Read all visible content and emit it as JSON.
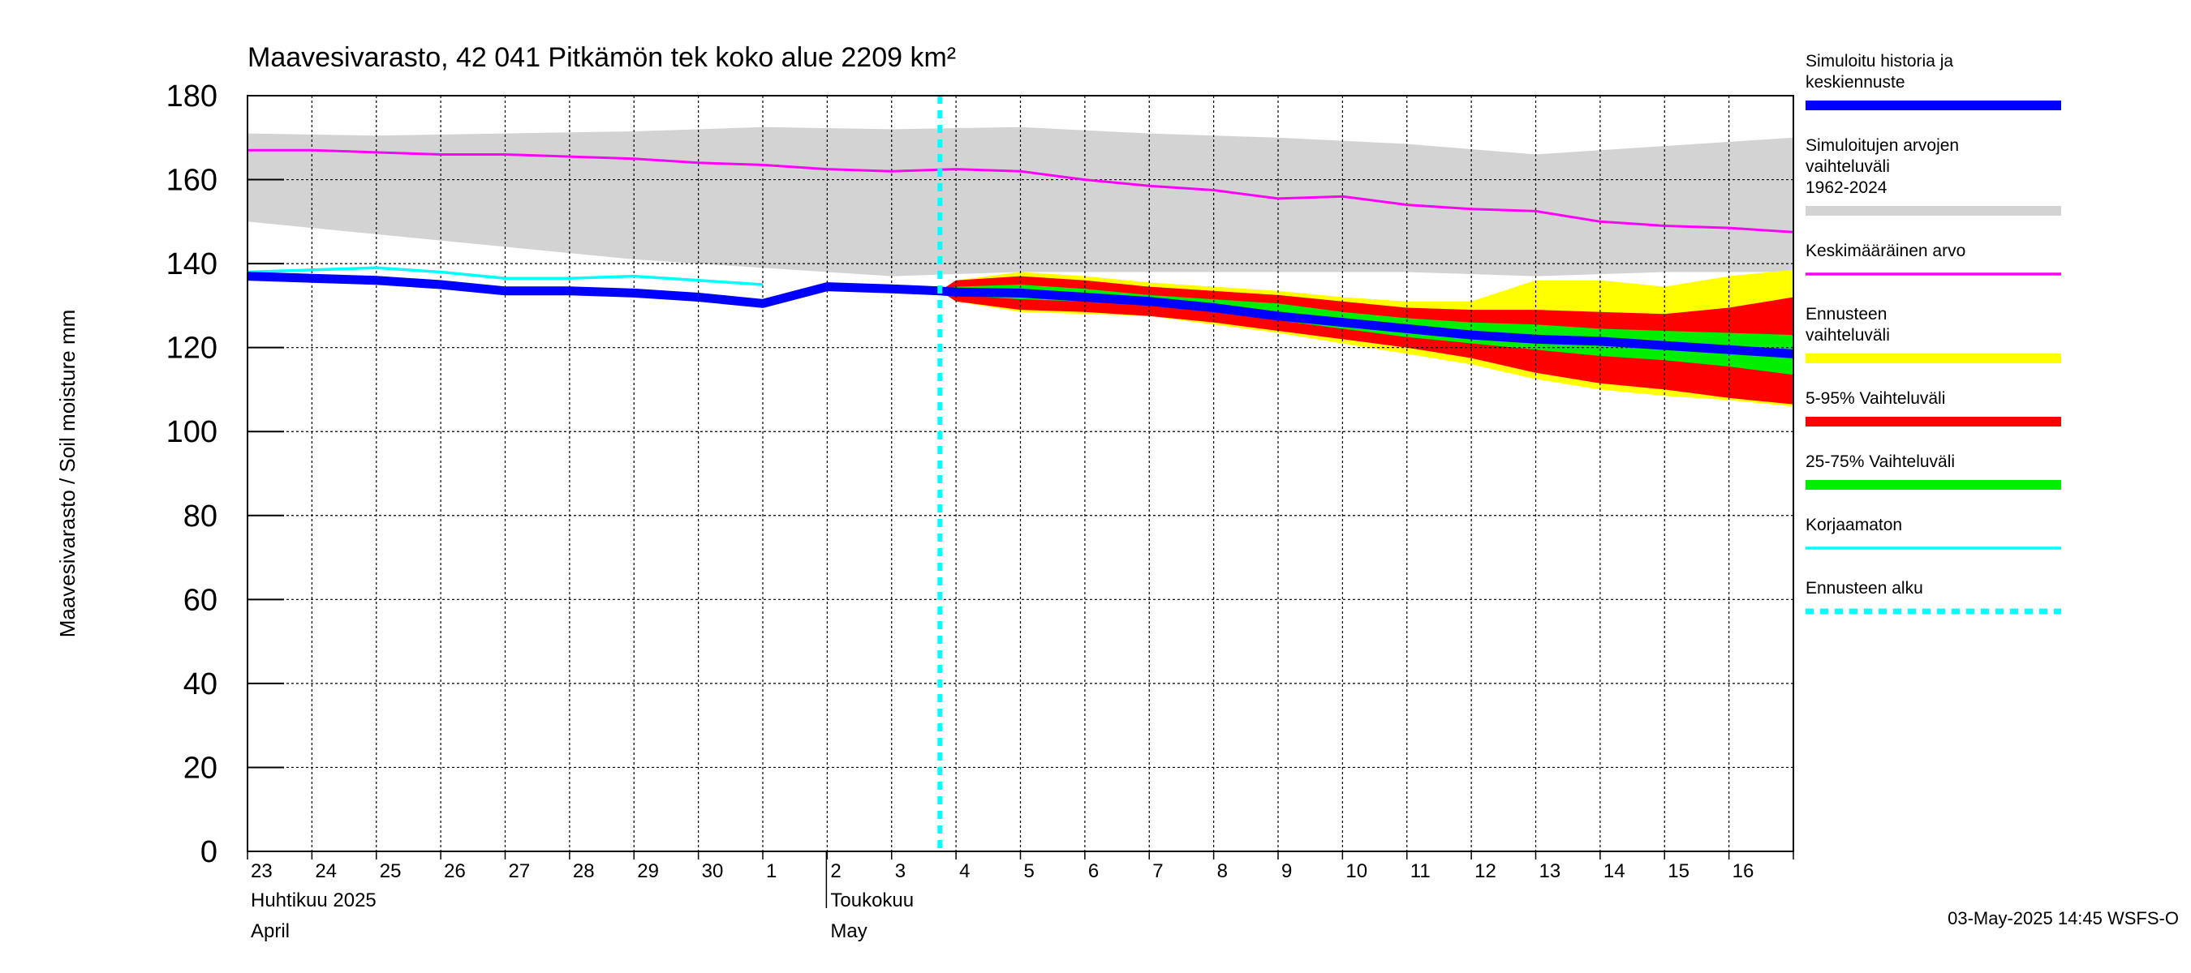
{
  "chart_data": {
    "type": "area",
    "title": "Maavesivarasto, 42 041 Pitkämön tek koko alue 2209 km²",
    "ylabel": "Maavesivarasto / Soil moisture   mm",
    "ylim": [
      0,
      180
    ],
    "yticks": [
      0,
      20,
      40,
      60,
      80,
      100,
      120,
      140,
      160,
      180
    ],
    "grid": true,
    "day_labels": [
      "23",
      "24",
      "25",
      "26",
      "27",
      "28",
      "29",
      "30",
      "1",
      "2",
      "3",
      "4",
      "5",
      "6",
      "7",
      "8",
      "9",
      "10",
      "11",
      "12",
      "13",
      "14",
      "15",
      "16"
    ],
    "months": [
      {
        "name_fi": "Huhtikuu  2025",
        "name_en": "April",
        "start_day": 0
      },
      {
        "name_fi": "Toukokuu",
        "name_en": "May",
        "start_day": 9
      }
    ],
    "x_range_days": [
      0,
      24
    ],
    "forecast_start_day": 10.75,
    "footer": "03-May-2025 14:45 WSFS-O",
    "legend": [
      {
        "label": "Simuloitu historia ja keskiennuste",
        "color": "#0000ff",
        "style": "thick"
      },
      {
        "label": "Simuloitujen arvojen vaihteluväli 1962-2024",
        "color": "#d3d3d3",
        "style": "band"
      },
      {
        "label": "Keskimääräinen arvo",
        "color": "#ff00ff",
        "style": "line"
      },
      {
        "label": "Ennusteen vaihteluväli",
        "color": "#ffff00",
        "style": "band"
      },
      {
        "label": "5-95% Vaihteluväli",
        "color": "#ff0000",
        "style": "band"
      },
      {
        "label": "25-75% Vaihteluväli",
        "color": "#00ee00",
        "style": "band"
      },
      {
        "label": "Korjaamaton",
        "color": "#00ffff",
        "style": "line"
      },
      {
        "label": "Ennusteen alku",
        "color": "#00ffff",
        "style": "dashed"
      }
    ],
    "series": {
      "historical_range": {
        "x": [
          0,
          2,
          4,
          6,
          8,
          10,
          12,
          14,
          16,
          18,
          20,
          22,
          24
        ],
        "upper": [
          171,
          170.5,
          171,
          171.5,
          172.5,
          172,
          172.5,
          171,
          170,
          168.5,
          166,
          168,
          170
        ],
        "lower": [
          150,
          147,
          144,
          141,
          139,
          137,
          138,
          138,
          138,
          138,
          137,
          138,
          138
        ]
      },
      "mean": {
        "x": [
          0,
          1,
          2,
          3,
          4,
          5,
          6,
          7,
          8,
          9,
          10,
          11,
          12,
          13,
          14,
          15,
          16,
          17,
          18,
          19,
          20,
          21,
          22,
          23,
          24
        ],
        "y": [
          167,
          167,
          166.5,
          166,
          166,
          165.5,
          165,
          164,
          163.5,
          162.5,
          162,
          162.5,
          162,
          160,
          158.5,
          157.5,
          155.5,
          156,
          154,
          153,
          152.5,
          150,
          149,
          148.5,
          147.5
        ]
      },
      "uncorrected": {
        "x": [
          0,
          1,
          2,
          3,
          4,
          5,
          6,
          7,
          8
        ],
        "y": [
          138,
          138.5,
          139,
          138,
          136.5,
          136.5,
          137,
          136,
          135
        ]
      },
      "simulated": {
        "x": [
          0,
          1,
          2,
          3,
          4,
          5,
          6,
          7,
          8,
          9,
          10,
          10.75,
          11,
          12,
          13,
          14,
          15,
          16,
          17,
          18,
          19,
          20,
          21,
          22,
          23,
          24
        ],
        "y": [
          137,
          136.5,
          136,
          135,
          133.5,
          133.5,
          133,
          132,
          130.5,
          134.5,
          134,
          133.5,
          133.2,
          133,
          132,
          131,
          129.5,
          127.5,
          126,
          124.5,
          123,
          122,
          121.5,
          120.5,
          119.5,
          118.5
        ]
      },
      "forecast_range": {
        "x": [
          10.75,
          11,
          12,
          13,
          14,
          15,
          16,
          17,
          18,
          19,
          20,
          21,
          22,
          23,
          24
        ],
        "upper": [
          133.5,
          136,
          138,
          137,
          135.5,
          134.5,
          133.5,
          132,
          131,
          131,
          136,
          136,
          134.5,
          137,
          138.5
        ],
        "lower": [
          133.5,
          131,
          128.5,
          128,
          127.5,
          125.5,
          123.5,
          121,
          118.5,
          116,
          112.5,
          110,
          108.5,
          107.5,
          106
        ]
      },
      "p5_95": {
        "x": [
          10.75,
          11,
          12,
          13,
          14,
          15,
          16,
          17,
          18,
          19,
          20,
          21,
          22,
          23,
          24
        ],
        "upper": [
          133.5,
          136,
          137,
          136,
          134.5,
          133.5,
          132.5,
          131,
          129.5,
          129,
          129,
          128.5,
          128,
          129.5,
          132
        ],
        "lower": [
          133.5,
          131,
          129,
          128.5,
          127.5,
          126,
          124,
          122,
          120,
          117.5,
          114,
          111.5,
          110,
          108,
          106.5
        ]
      },
      "p25_75": {
        "x": [
          10.75,
          11,
          12,
          13,
          14,
          15,
          16,
          17,
          18,
          19,
          20,
          21,
          22,
          23,
          24
        ],
        "upper": [
          133.5,
          134.5,
          135,
          134,
          132.5,
          131.5,
          130.5,
          128.5,
          127,
          126,
          125.5,
          124.5,
          124,
          123.5,
          123
        ],
        "lower": [
          133.5,
          132.5,
          131.5,
          131,
          130,
          128.5,
          126.5,
          124.5,
          122.5,
          121,
          119.5,
          118,
          117,
          115.5,
          113.5
        ]
      }
    }
  }
}
